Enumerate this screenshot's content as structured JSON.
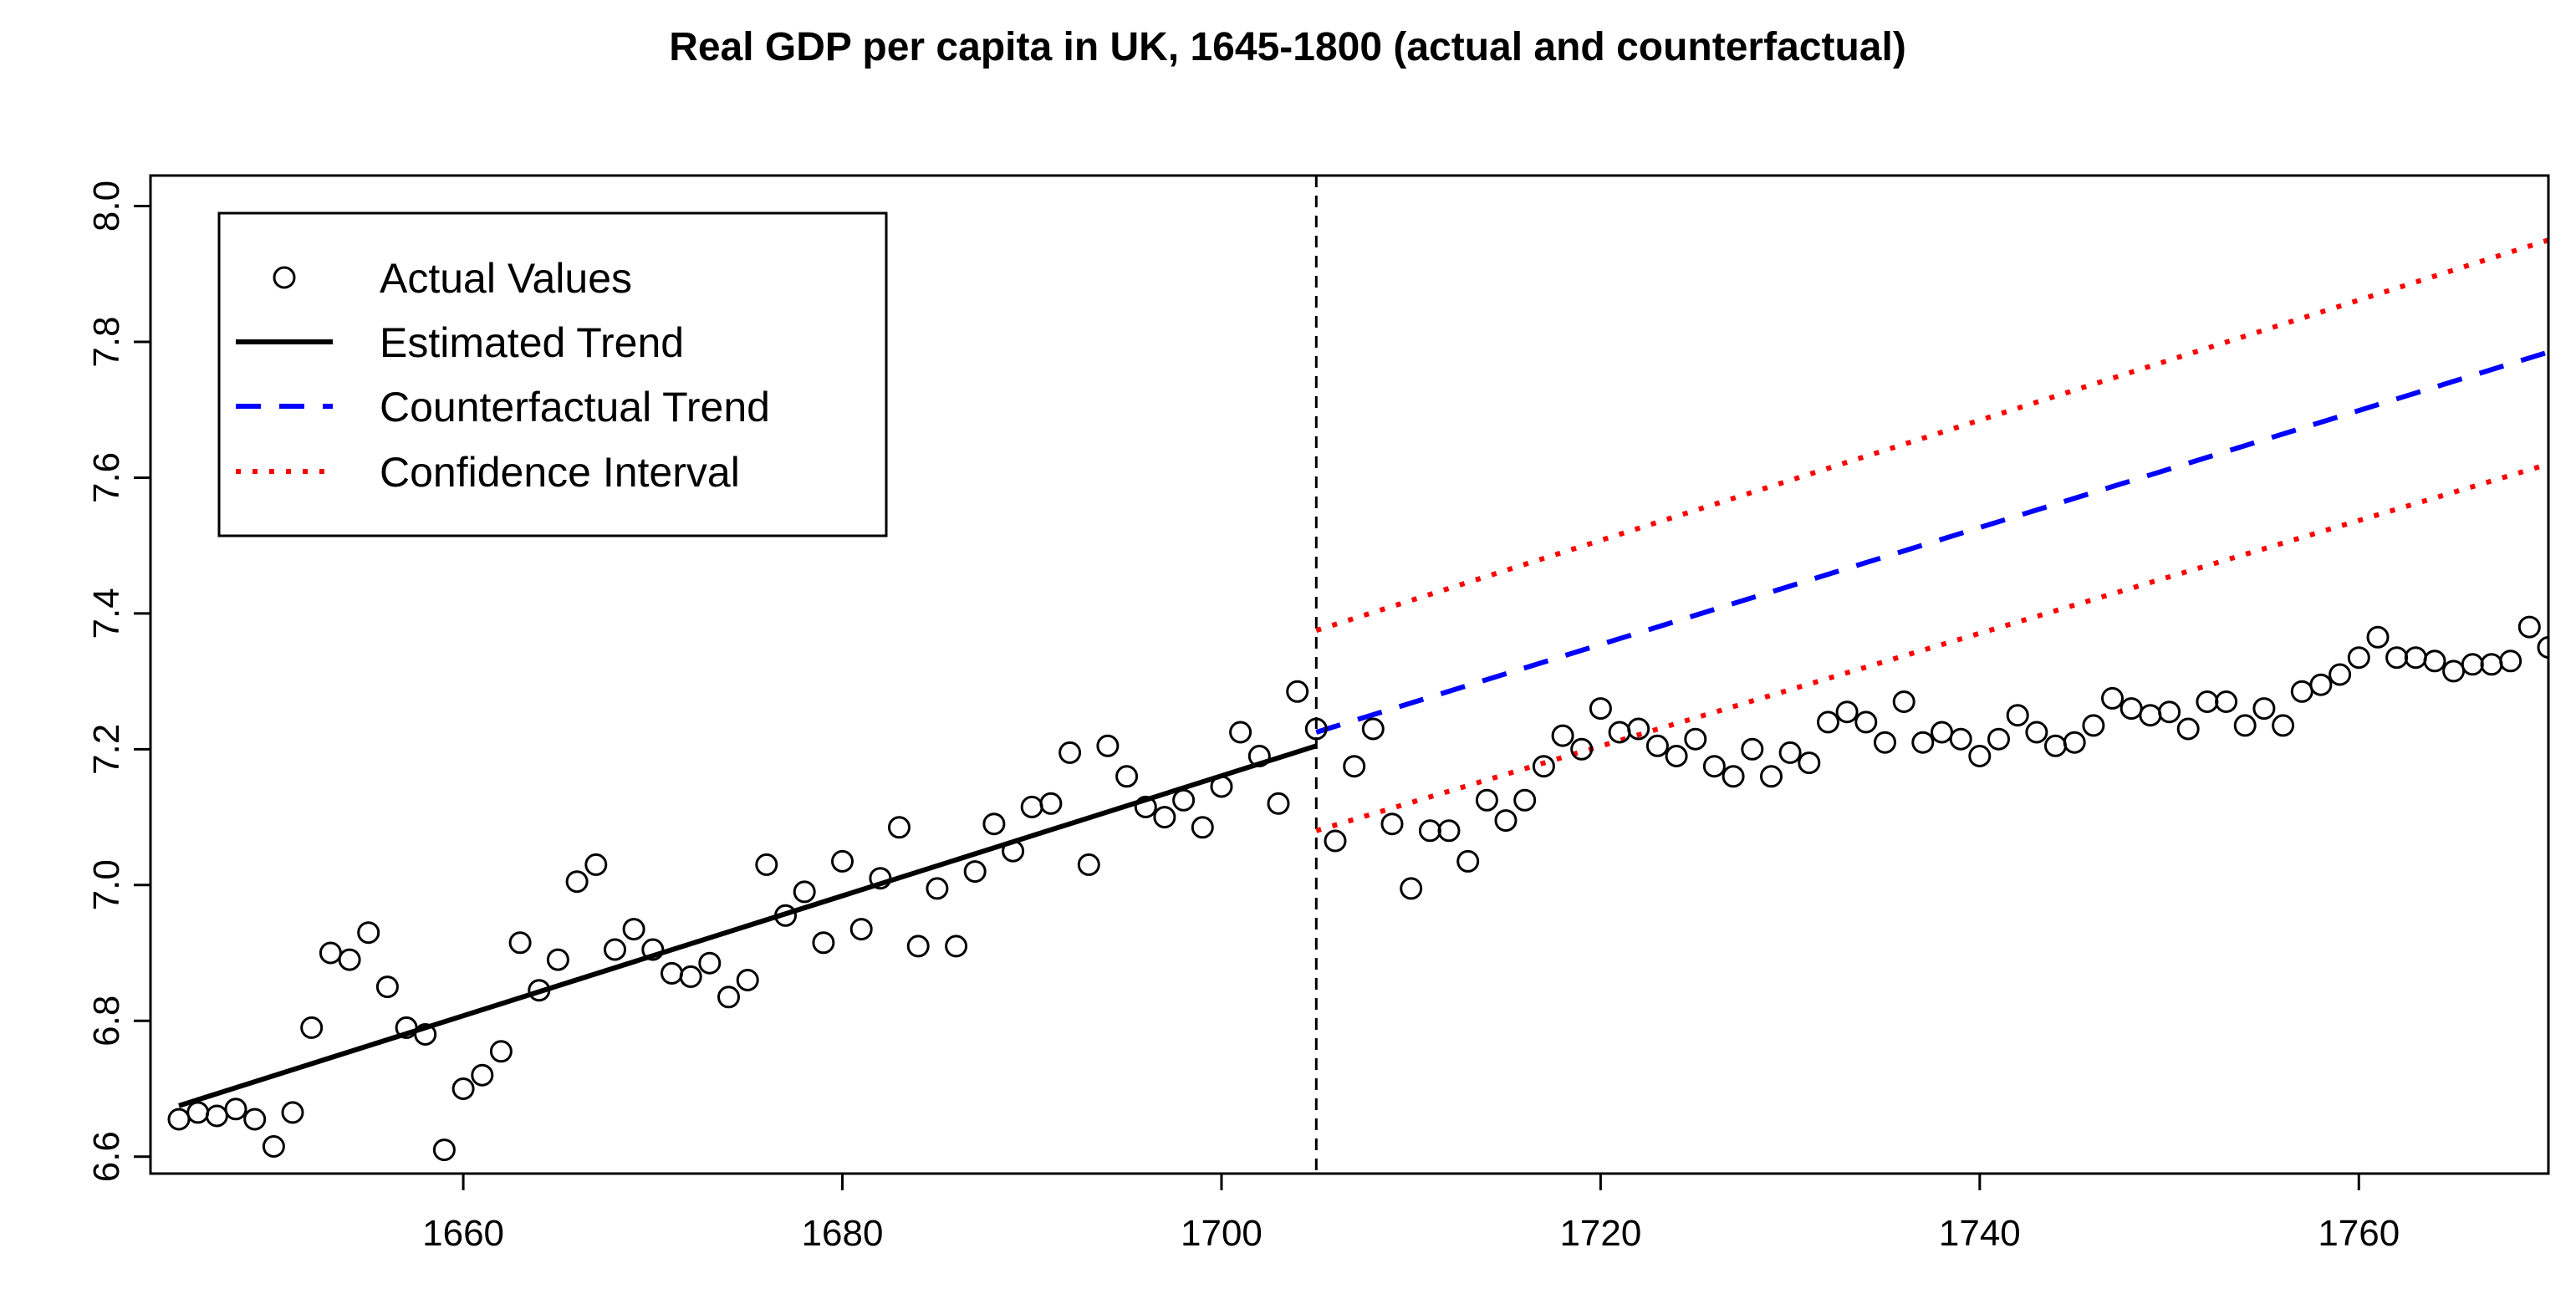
{
  "chart_data": {
    "type": "line",
    "title": "Real GDP per capita in UK, 1645-1800 (actual and counterfactual)",
    "xlabel": "",
    "ylabel": "",
    "xlim": [
      1643.5,
      1770
    ],
    "ylim": [
      6.575,
      8.045
    ],
    "x_ticks": [
      1660,
      1680,
      1700,
      1720,
      1740,
      1760
    ],
    "y_ticks": [
      6.6,
      6.8,
      7.0,
      7.2,
      7.4,
      7.6,
      7.8,
      8.0
    ],
    "x_tick_labels": [
      "1660",
      "1680",
      "1700",
      "1720",
      "1740",
      "1760"
    ],
    "y_tick_labels": [
      "6.6",
      "6.8",
      "7.0",
      "7.2",
      "7.4",
      "7.6",
      "7.8",
      "8.0"
    ],
    "break_year": 1705,
    "grid": false,
    "legend_position": "top-left",
    "legend": [
      {
        "key": "actual",
        "label": "Actual Values",
        "style": "circle",
        "color": "#000000"
      },
      {
        "key": "trend",
        "label": "Estimated Trend",
        "style": "solid",
        "color": "#000000"
      },
      {
        "key": "counterfactual",
        "label": "Counterfactual Trend",
        "style": "dashed",
        "color": "#0000ff"
      },
      {
        "key": "ci",
        "label": "Confidence Interval",
        "style": "dotted",
        "color": "#ff0000"
      }
    ],
    "series": [
      {
        "key": "actual",
        "x": [
          1645,
          1646,
          1647,
          1648,
          1649,
          1650,
          1651,
          1652,
          1653,
          1654,
          1655,
          1656,
          1657,
          1658,
          1659,
          1660,
          1661,
          1662,
          1663,
          1664,
          1665,
          1666,
          1667,
          1668,
          1669,
          1670,
          1671,
          1672,
          1673,
          1674,
          1675,
          1676,
          1677,
          1678,
          1679,
          1680,
          1681,
          1682,
          1683,
          1684,
          1685,
          1686,
          1687,
          1688,
          1689,
          1690,
          1691,
          1692,
          1693,
          1694,
          1695,
          1696,
          1697,
          1698,
          1699,
          1700,
          1701,
          1702,
          1703,
          1704,
          1705,
          1706,
          1707,
          1708,
          1709,
          1710,
          1711,
          1712,
          1713,
          1714,
          1715,
          1716,
          1717,
          1718,
          1719,
          1720,
          1721,
          1722,
          1723,
          1724,
          1725,
          1726,
          1727,
          1728,
          1729,
          1730,
          1731,
          1732,
          1733,
          1734,
          1735,
          1736,
          1737,
          1738,
          1739,
          1740,
          1741,
          1742,
          1743,
          1744,
          1745,
          1746,
          1747,
          1748,
          1749,
          1750,
          1751,
          1752,
          1753,
          1754,
          1755,
          1756,
          1757,
          1758,
          1759,
          1760,
          1761,
          1762,
          1763,
          1764,
          1765,
          1766,
          1767,
          1768,
          1769,
          1770
        ],
        "y": [
          6.655,
          6.665,
          6.66,
          6.67,
          6.655,
          6.615,
          6.665,
          6.79,
          6.9,
          6.89,
          6.93,
          6.85,
          6.79,
          6.78,
          6.61,
          6.7,
          6.72,
          6.755,
          6.915,
          6.845,
          6.89,
          7.005,
          7.03,
          6.905,
          6.935,
          6.905,
          6.87,
          6.865,
          6.885,
          6.835,
          6.86,
          7.03,
          6.955,
          6.99,
          6.915,
          7.035,
          6.935,
          7.01,
          7.085,
          6.91,
          6.995,
          6.91,
          7.02,
          7.09,
          7.05,
          7.115,
          7.12,
          7.195,
          7.03,
          7.205,
          7.16,
          7.115,
          7.1,
          7.125,
          7.085,
          7.145,
          7.225,
          7.19,
          7.12,
          7.285,
          7.23,
          7.065,
          7.175,
          7.23,
          7.09,
          6.995,
          7.08,
          7.08,
          7.035,
          7.125,
          7.095,
          7.125,
          7.175,
          7.22,
          7.2,
          7.26,
          7.225,
          7.23,
          7.205,
          7.19,
          7.215,
          7.175,
          7.16,
          7.2,
          7.16,
          7.195,
          7.18,
          7.24,
          7.255,
          7.24,
          7.21,
          7.27,
          7.21,
          7.225,
          7.215,
          7.19,
          7.215,
          7.25,
          7.225,
          7.205,
          7.21,
          7.235,
          7.275,
          7.26,
          7.25,
          7.255,
          7.23,
          7.27,
          7.27,
          7.235,
          7.26,
          7.235,
          7.285,
          7.295,
          7.31,
          7.335,
          7.365,
          7.335,
          7.335,
          7.33,
          7.315,
          7.325,
          7.325,
          7.33,
          7.38,
          7.35
        ]
      },
      {
        "key": "trend",
        "x": [
          1645,
          1705
        ],
        "y": [
          6.675,
          7.205
        ]
      },
      {
        "key": "counterfactual",
        "x": [
          1705,
          1770
        ],
        "y": [
          7.225,
          7.785
        ]
      },
      {
        "key": "ci_upper",
        "x": [
          1705,
          1770
        ],
        "y": [
          7.375,
          7.95
        ]
      },
      {
        "key": "ci_lower",
        "x": [
          1705,
          1770
        ],
        "y": [
          7.08,
          7.62
        ]
      }
    ]
  }
}
